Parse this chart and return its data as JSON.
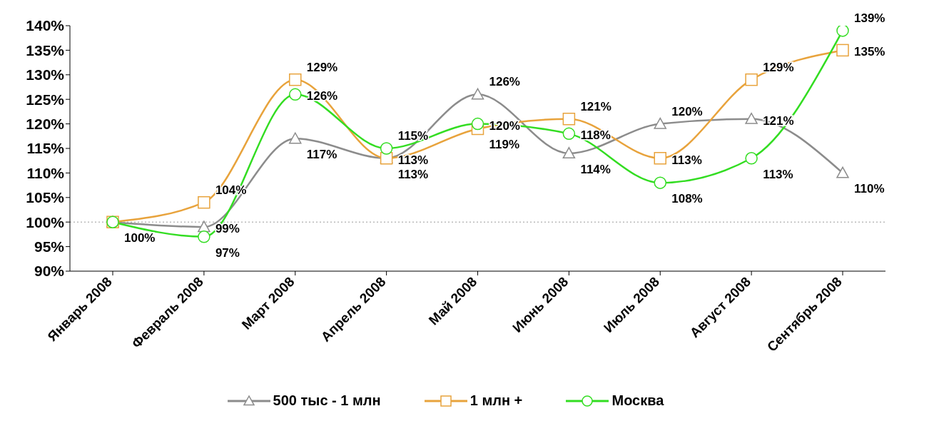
{
  "chart_data": {
    "type": "line",
    "categories": [
      "Январь 2008",
      "Февраль 2008",
      "Март 2008",
      "Апрель 2008",
      "Май 2008",
      "Июнь 2008",
      "Июль 2008",
      "Август 2008",
      "Сентябрь 2008"
    ],
    "series": [
      {
        "name": "500 тыс - 1 млн",
        "color": "#8c8c8c",
        "marker": "triangle",
        "values": [
          100,
          99,
          117,
          113,
          126,
          114,
          120,
          121,
          110
        ],
        "value_labels": [
          null,
          "99%",
          "117%",
          "113%",
          "126%",
          "114%",
          "120%",
          "121%",
          "110%"
        ]
      },
      {
        "name": "1 млн +",
        "color": "#e8a33c",
        "marker": "square",
        "values": [
          100,
          104,
          129,
          113,
          119,
          121,
          113,
          129,
          135
        ],
        "value_labels": [
          null,
          "104%",
          "129%",
          "113%",
          "119%",
          "121%",
          "113%",
          "129%",
          "135%"
        ]
      },
      {
        "name": "Москва",
        "color": "#33dd22",
        "marker": "circle",
        "values": [
          100,
          97,
          126,
          115,
          120,
          118,
          108,
          113,
          139
        ],
        "value_labels": [
          "100%",
          "97%",
          "126%",
          "115%",
          "120%",
          "118%",
          "108%",
          "113%",
          "139%"
        ]
      }
    ],
    "ylim": [
      90,
      140
    ],
    "yticks": [
      {
        "value": 90,
        "label": "90%"
      },
      {
        "value": 95,
        "label": "95%"
      },
      {
        "value": 100,
        "label": "100%"
      },
      {
        "value": 105,
        "label": "105%"
      },
      {
        "value": 110,
        "label": "110%"
      },
      {
        "value": 115,
        "label": "115%"
      },
      {
        "value": 120,
        "label": "120%"
      },
      {
        "value": 125,
        "label": "125%"
      },
      {
        "value": 130,
        "label": "130%"
      },
      {
        "value": 135,
        "label": "135%"
      },
      {
        "value": 140,
        "label": "140%"
      }
    ],
    "ref_lines": [
      {
        "axis": "y",
        "value": 100,
        "color": "#999999",
        "line_style": "dotted"
      }
    ],
    "grid": false,
    "legend": "bottom",
    "line_style": "solid"
  }
}
